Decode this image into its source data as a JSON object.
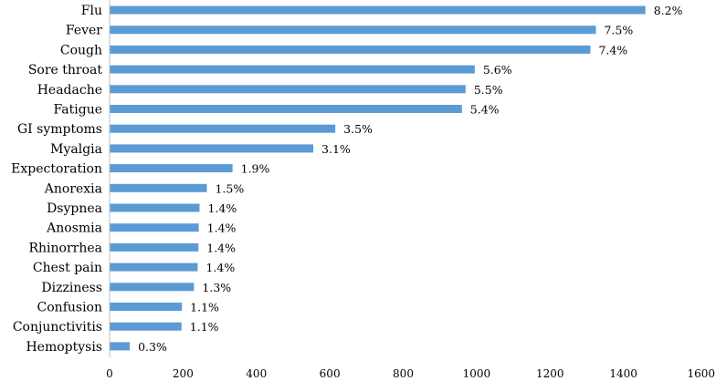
{
  "chart_data": {
    "type": "bar",
    "orientation": "horizontal",
    "categories": [
      "Flu",
      "Fever",
      "Cough",
      "Sore throat",
      "Headache",
      "Fatigue",
      "GI symptoms",
      "Myalgia",
      "Expectoration",
      "Anorexia",
      "Dsypnea",
      "Anosmia",
      "Rhinorrhea",
      "Chest pain",
      "Dizziness",
      "Confusion",
      "Conjunctivitis",
      "Hemoptysis"
    ],
    "values": [
      1460,
      1325,
      1310,
      995,
      970,
      960,
      615,
      555,
      335,
      265,
      245,
      243,
      242,
      240,
      230,
      197,
      196,
      55
    ],
    "data_labels": [
      "8.2%",
      "7.5%",
      "7.4%",
      "5.6%",
      "5.5%",
      "5.4%",
      "3.5%",
      "3.1%",
      "1.9%",
      "1.5%",
      "1.4%",
      "1.4%",
      "1.4%",
      "1.4%",
      "1.3%",
      "1.1%",
      "1.1%",
      "0.3%"
    ],
    "xticks": [
      "0",
      "200",
      "400",
      "600",
      "800",
      "1000",
      "1200",
      "1400",
      "1600"
    ],
    "xlim": [
      0,
      1600
    ],
    "title": "",
    "xlabel": "",
    "ylabel": "",
    "grid": false,
    "legend": "none",
    "colors": {
      "bar": "#5B9BD5",
      "axis": "#BFBFBF",
      "text": "#000000"
    }
  }
}
